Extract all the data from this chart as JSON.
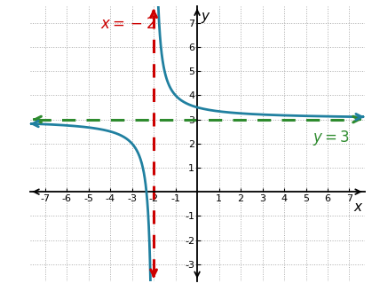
{
  "title": "",
  "xlabel": "x",
  "ylabel": "y",
  "xlim": [
    -7.7,
    7.7
  ],
  "ylim": [
    -3.7,
    7.7
  ],
  "xticks": [
    -7,
    -6,
    -5,
    -4,
    -3,
    -2,
    -1,
    1,
    2,
    3,
    4,
    5,
    6,
    7
  ],
  "yticks": [
    -3,
    -2,
    -1,
    1,
    2,
    3,
    4,
    5,
    6,
    7
  ],
  "asymptote_x": -2,
  "asymptote_y": 3,
  "func_color": "#2080a0",
  "vasym_color": "#cc0000",
  "hasym_color": "#2e8b2e",
  "vasym_label": "$x = -2$",
  "hasym_label": "$y = 3$",
  "label_fontsize": 12,
  "tick_fontsize": 8,
  "axis_label_fontsize": 11,
  "background_color": "#ffffff",
  "grid_color": "#aaaaaa"
}
